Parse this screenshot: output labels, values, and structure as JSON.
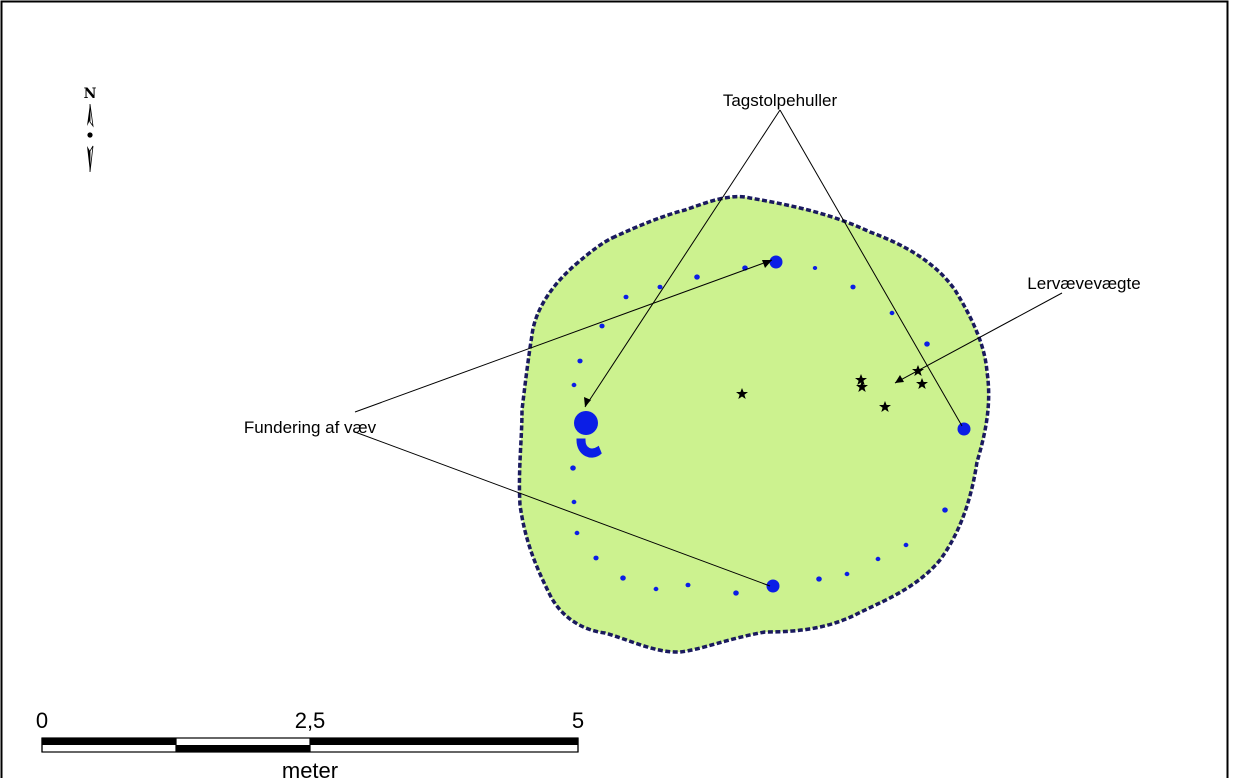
{
  "north_arrow": {
    "label": "N"
  },
  "labels": {
    "roof_posts": "Tagstolpehuller",
    "loom_weights": "Lervævevægte",
    "loom_foundation": "Fundering af væv"
  },
  "scale_bar": {
    "tick_labels": [
      "0",
      "2,5",
      "5"
    ],
    "unit": "meter"
  },
  "colors": {
    "house_fill": "#ccf28f",
    "house_outline": "#1a1a5e",
    "postholes": "#0b1ee6",
    "finds": "#000000"
  }
}
